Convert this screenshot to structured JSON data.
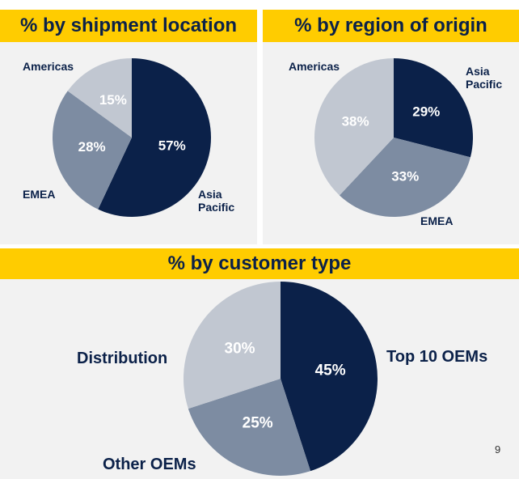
{
  "chart_data": [
    {
      "type": "pie",
      "title": "% by shipment location",
      "categories": [
        "Asia Pacific",
        "EMEA",
        "Americas"
      ],
      "values": [
        57,
        28,
        15
      ],
      "value_labels": [
        "57%",
        "28%",
        "15%"
      ],
      "colors": [
        "#0b2149",
        "#7d8ca2",
        "#c1c7d1"
      ]
    },
    {
      "type": "pie",
      "title": "% by region of origin",
      "categories": [
        "Asia Pacific",
        "EMEA",
        "Americas"
      ],
      "values": [
        29,
        33,
        38
      ],
      "value_labels": [
        "29%",
        "33%",
        "38%"
      ],
      "colors": [
        "#0b2149",
        "#7d8ca2",
        "#c1c7d1"
      ]
    },
    {
      "type": "pie",
      "title": "% by customer type",
      "categories": [
        "Top 10 OEMs",
        "Other OEMs",
        "Distribution"
      ],
      "values": [
        45,
        25,
        30
      ],
      "value_labels": [
        "45%",
        "25%",
        "30%"
      ],
      "colors": [
        "#0b2149",
        "#7d8ca2",
        "#c1c7d1"
      ]
    }
  ],
  "page_number": "9"
}
